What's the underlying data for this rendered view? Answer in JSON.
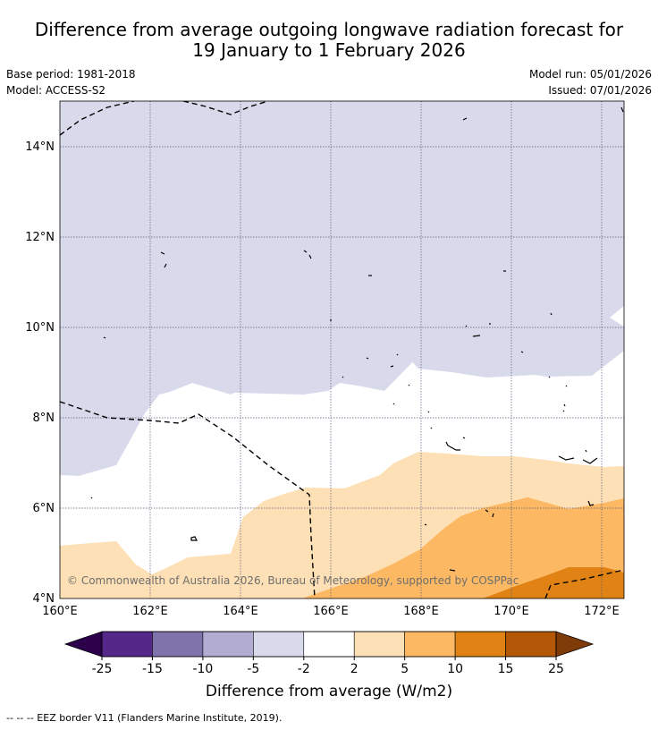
{
  "title_line1": "Difference from average outgoing longwave radiation forecast for",
  "title_line2": "19 January to 1 February 2026",
  "base_period": "Base period: 1981-2018",
  "model": "Model: ACCESS-S2",
  "model_run": "Model run: 05/01/2026",
  "issued": "Issued: 07/01/2026",
  "copyright": "© Commonwealth of Australia 2026, Bureau of Meteorology, supported by COSPPac",
  "lat_labels": [
    "4°N",
    "6°N",
    "8°N",
    "10°N",
    "12°N",
    "14°N"
  ],
  "lon_labels": [
    "160°E",
    "162°E",
    "164°E",
    "166°E",
    "168°E",
    "170°E",
    "172°E"
  ],
  "colorbar": {
    "title": "Difference from average (W/m2)",
    "ticks": [
      "-25",
      "-15",
      "-10",
      "-5",
      "-2",
      "2",
      "5",
      "10",
      "15",
      "25"
    ],
    "colors": [
      "#2d004b",
      "#542788",
      "#8073ac",
      "#b2abd2",
      "#d8daeb",
      "#ffffff",
      "#fee0b6",
      "#fdb863",
      "#e08214",
      "#b35806",
      "#7f3b08"
    ]
  },
  "footnote": "--  --  -- EEZ border V11 (Flanders Marine Institute, 2019)."
}
